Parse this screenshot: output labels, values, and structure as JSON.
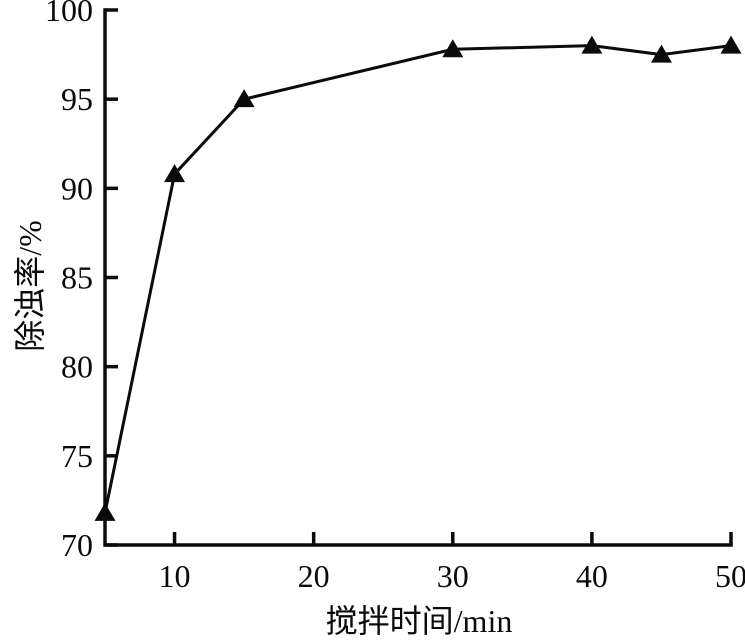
{
  "chart_data": {
    "type": "line",
    "title": "",
    "xlabel": "搅拌时间/min",
    "ylabel": "除浊率/%",
    "xlim": [
      5,
      50
    ],
    "ylim": [
      70,
      100
    ],
    "xticks": [
      10,
      20,
      30,
      40,
      50
    ],
    "yticks": [
      70,
      75,
      80,
      85,
      90,
      95,
      100
    ],
    "grid": false,
    "legend": "none",
    "series": [
      {
        "name": "除浊率",
        "marker": "filled-triangle-up",
        "line_color": "#0b0b0b",
        "marker_color": "#0b0b0b",
        "x": [
          5,
          10,
          15,
          30,
          40,
          45,
          50
        ],
        "y": [
          71.8,
          90.8,
          95.0,
          97.8,
          98.0,
          97.5,
          98.0
        ]
      }
    ],
    "background": "#ffffff"
  }
}
